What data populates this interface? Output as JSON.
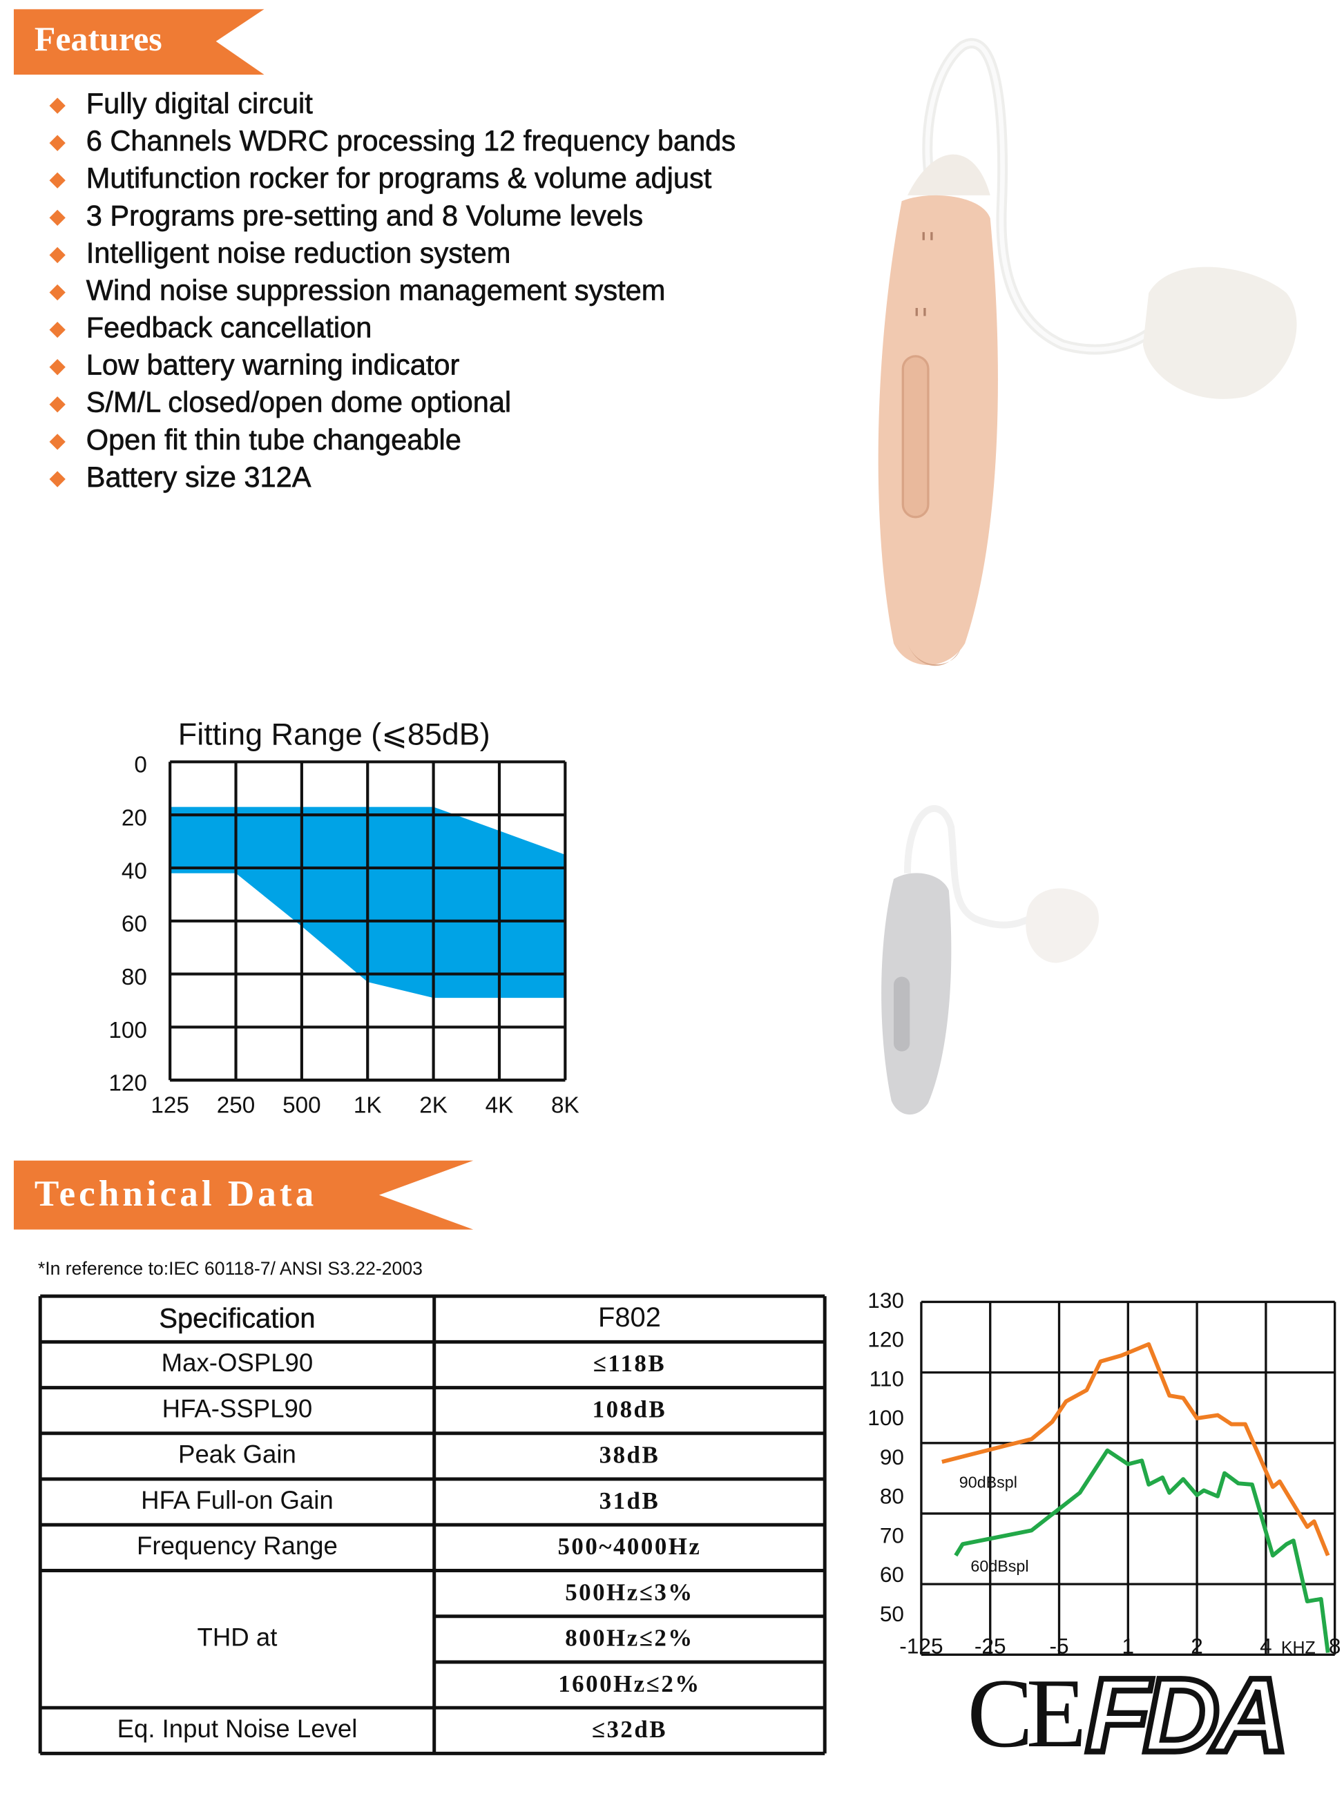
{
  "features": {
    "title": "Features",
    "items": [
      "Fully digital circuit",
      "6 Channels WDRC processing 12 frequency bands",
      "Mutifunction rocker for programs & volume adjust",
      "3 Programs pre-setting and 8 Volume levels",
      "Intelligent noise reduction system",
      "Wind noise suppression management system",
      "Feedback cancellation",
      "Low battery warning indicator",
      "S/M/L closed/open dome optional",
      "Open fit thin tube changeable",
      "Battery size 312A"
    ]
  },
  "technical_data": {
    "title": "Technical Data",
    "note": "*In reference to:IEC 60118-7/ ANSI S3.22-2003",
    "header": [
      "Specification",
      "F802"
    ],
    "rows": [
      {
        "label": "Max-OSPL90",
        "values": [
          "≤118B"
        ]
      },
      {
        "label": "HFA-SSPL90",
        "values": [
          "108dB"
        ]
      },
      {
        "label": "Peak Gain",
        "values": [
          "38dB"
        ]
      },
      {
        "label": "HFA Full-on Gain",
        "values": [
          "31dB"
        ]
      },
      {
        "label": "Frequency Range",
        "values": [
          "500~4000Hz"
        ]
      },
      {
        "label": "THD at",
        "values": [
          "500Hz≤3%",
          "800Hz≤2%",
          "1600Hz≤2%"
        ]
      },
      {
        "label": "Eq. Input Noise Level",
        "values": [
          "≤32dB"
        ]
      }
    ]
  },
  "logos": [
    "CE",
    "FDA"
  ],
  "chart_data": [
    {
      "type": "range_area",
      "title": "Fitting Range (⩽85dB)",
      "categories": [
        "125",
        "250",
        "500",
        "1K",
        "2K",
        "4K",
        "8K"
      ],
      "series": [
        {
          "color": "#00a3e6",
          "values": [
            17,
            17,
            17,
            17,
            17,
            26,
            35
          ]
        },
        {
          "color": "#00a3e6",
          "values": [
            42,
            42,
            62,
            83,
            89,
            89,
            89
          ]
        }
      ],
      "ylim": [
        0,
        120
      ],
      "yticks": [
        0,
        20,
        40,
        60,
        80,
        100,
        120
      ],
      "inverted": true,
      "grid": true
    },
    {
      "type": "line",
      "x_label": "KHZ",
      "xlim": [
        0,
        6
      ],
      "xticks": [
        {
          "value": 0,
          "label": "-125"
        },
        {
          "value": 1,
          "label": "-25"
        },
        {
          "value": 2,
          "label": "-5"
        },
        {
          "value": 3,
          "label": "1"
        },
        {
          "value": 4,
          "label": "2"
        },
        {
          "value": 5,
          "label": "4"
        },
        {
          "value": 6,
          "label": "8"
        }
      ],
      "ylim": [
        40,
        130
      ],
      "yticks": [
        50,
        60,
        70,
        80,
        90,
        100,
        110,
        120,
        130
      ],
      "series": [
        {
          "name": "90dBspl",
          "color": "#f07d22",
          "x": [
            0.3,
            1.6,
            1.9,
            2.1,
            2.4,
            2.6,
            2.9,
            3.3,
            3.6,
            3.8,
            4.0,
            4.3,
            4.5,
            4.7,
            5.1,
            5.2,
            5.6,
            5.7,
            5.9
          ],
          "values": [
            89.2,
            95,
            99.4,
            104.6,
            107.5,
            114.8,
            116.3,
            119.2,
            106.1,
            105.5,
            100.3,
            101.1,
            98.8,
            98.8,
            82.8,
            84.2,
            72.6,
            74,
            65.3
          ]
        },
        {
          "name": "60dBspl",
          "color": "#22a848",
          "x": [
            0.5,
            0.6,
            1.6,
            2.3,
            2.7,
            3.0,
            3.2,
            3.3,
            3.5,
            3.6,
            3.8,
            4.0,
            4.1,
            4.3,
            4.4,
            4.6,
            4.8,
            5.1,
            5.3,
            5.4,
            5.6,
            5.8,
            5.9
          ],
          "values": [
            65.3,
            68.2,
            71.7,
            81.3,
            92.1,
            88.6,
            89.5,
            83.4,
            85.2,
            81.3,
            84.8,
            80.7,
            81.9,
            80.4,
            86.3,
            83.7,
            83.4,
            65.3,
            68.2,
            69.1,
            53.6,
            54.2,
            40.5
          ]
        }
      ]
    }
  ]
}
